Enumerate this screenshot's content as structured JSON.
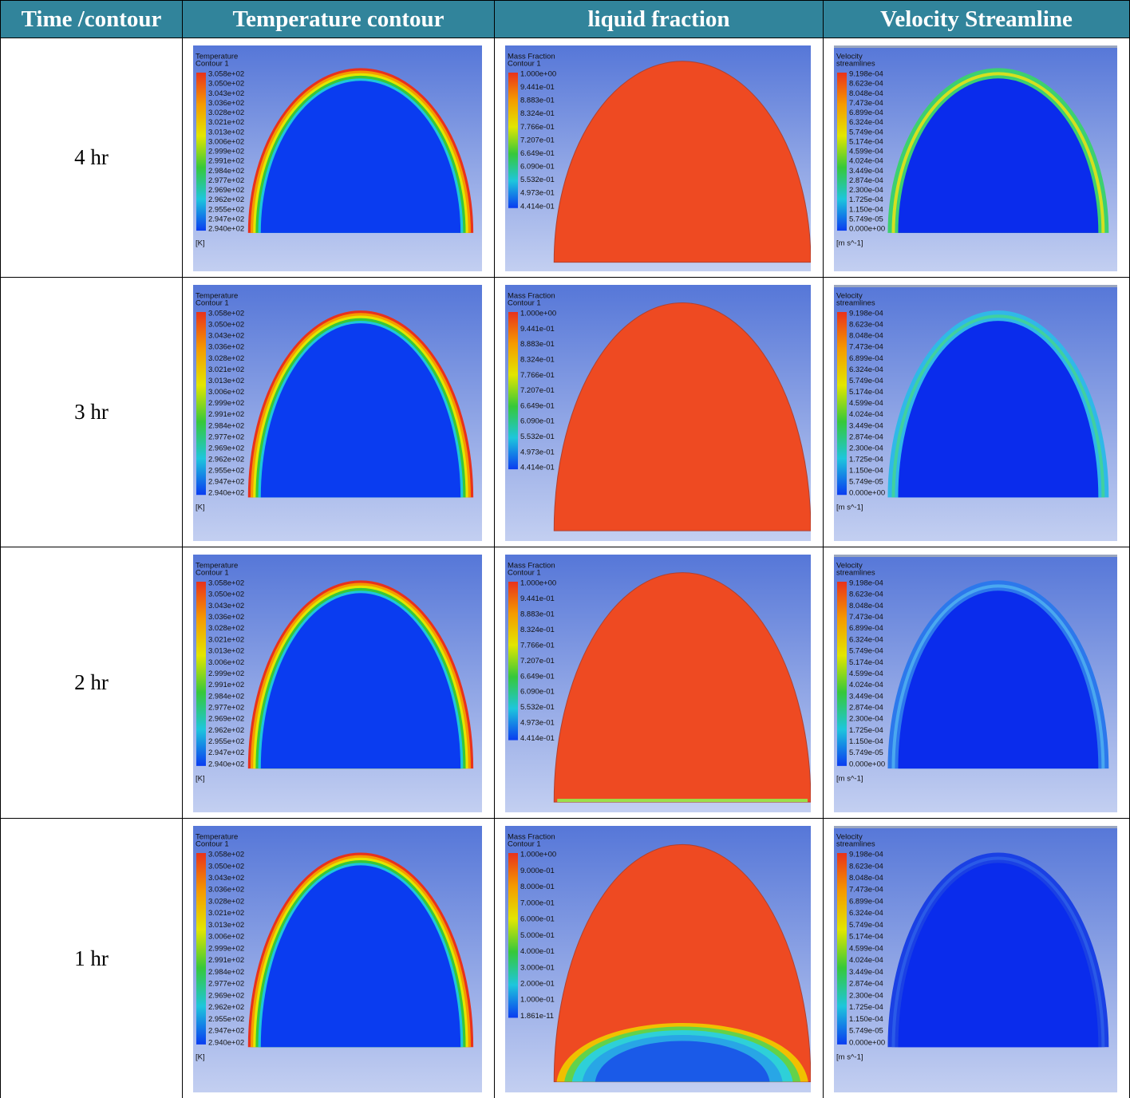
{
  "header": [
    "Time /contour",
    "Temperature contour",
    "liquid fraction",
    "Velocity Streamline"
  ],
  "rows": [
    {
      "time": "4 hr",
      "temperature": {
        "title": "Temperature",
        "subtitle": "Contour 1",
        "labels": [
          "3.058e+02",
          "3.050e+02",
          "3.043e+02",
          "3.036e+02",
          "3.028e+02",
          "3.021e+02",
          "3.013e+02",
          "3.006e+02",
          "2.999e+02",
          "2.991e+02",
          "2.984e+02",
          "2.977e+02",
          "2.969e+02",
          "2.962e+02",
          "2.955e+02",
          "2.947e+02",
          "2.940e+02"
        ],
        "unit": "[K]"
      },
      "liquid": {
        "title": "Mass Fraction",
        "subtitle": "Contour 1",
        "labels": [
          "1.000e+00",
          "9.441e-01",
          "8.883e-01",
          "8.324e-01",
          "7.766e-01",
          "7.207e-01",
          "6.649e-01",
          "6.090e-01",
          "5.532e-01",
          "4.973e-01",
          "4.414e-01"
        ]
      },
      "velocity": {
        "title": "Velocity",
        "subtitle": "streamlines",
        "labels": [
          "9.198e-04",
          "8.623e-04",
          "8.048e-04",
          "7.473e-04",
          "6.899e-04",
          "6.324e-04",
          "5.749e-04",
          "5.174e-04",
          "4.599e-04",
          "4.024e-04",
          "3.449e-04",
          "2.874e-04",
          "2.300e-04",
          "1.725e-04",
          "1.150e-04",
          "5.749e-05",
          "0.000e+00"
        ],
        "unit": "[m s^-1]"
      }
    },
    {
      "time": "3 hr",
      "temperature": {
        "title": "Temperature",
        "subtitle": "Contour 1",
        "labels": [
          "3.058e+02",
          "3.050e+02",
          "3.043e+02",
          "3.036e+02",
          "3.028e+02",
          "3.021e+02",
          "3.013e+02",
          "3.006e+02",
          "2.999e+02",
          "2.991e+02",
          "2.984e+02",
          "2.977e+02",
          "2.969e+02",
          "2.962e+02",
          "2.955e+02",
          "2.947e+02",
          "2.940e+02"
        ],
        "unit": "[K]"
      },
      "liquid": {
        "title": "Mass Fraction",
        "subtitle": "Contour 1",
        "labels": [
          "1.000e+00",
          "9.441e-01",
          "8.883e-01",
          "8.324e-01",
          "7.766e-01",
          "7.207e-01",
          "6.649e-01",
          "6.090e-01",
          "5.532e-01",
          "4.973e-01",
          "4.414e-01"
        ]
      },
      "velocity": {
        "title": "Velocity",
        "subtitle": "streamlines",
        "labels": [
          "9.198e-04",
          "8.623e-04",
          "8.048e-04",
          "7.473e-04",
          "6.899e-04",
          "6.324e-04",
          "5.749e-04",
          "5.174e-04",
          "4.599e-04",
          "4.024e-04",
          "3.449e-04",
          "2.874e-04",
          "2.300e-04",
          "1.725e-04",
          "1.150e-04",
          "5.749e-05",
          "0.000e+00"
        ],
        "unit": "[m s^-1]"
      }
    },
    {
      "time": "2 hr",
      "temperature": {
        "title": "Temperature",
        "subtitle": "Contour 1",
        "labels": [
          "3.058e+02",
          "3.050e+02",
          "3.043e+02",
          "3.036e+02",
          "3.028e+02",
          "3.021e+02",
          "3.013e+02",
          "3.006e+02",
          "2.999e+02",
          "2.991e+02",
          "2.984e+02",
          "2.977e+02",
          "2.969e+02",
          "2.962e+02",
          "2.955e+02",
          "2.947e+02",
          "2.940e+02"
        ],
        "unit": "[K]"
      },
      "liquid": {
        "title": "Mass Fraction",
        "subtitle": "Contour 1",
        "labels": [
          "1.000e+00",
          "9.441e-01",
          "8.883e-01",
          "8.324e-01",
          "7.766e-01",
          "7.207e-01",
          "6.649e-01",
          "6.090e-01",
          "5.532e-01",
          "4.973e-01",
          "4.414e-01"
        ]
      },
      "velocity": {
        "title": "Velocity",
        "subtitle": "streamlines",
        "labels": [
          "9.198e-04",
          "8.623e-04",
          "8.048e-04",
          "7.473e-04",
          "6.899e-04",
          "6.324e-04",
          "5.749e-04",
          "5.174e-04",
          "4.599e-04",
          "4.024e-04",
          "3.449e-04",
          "2.874e-04",
          "2.300e-04",
          "1.725e-04",
          "1.150e-04",
          "5.749e-05",
          "0.000e+00"
        ],
        "unit": "[m s^-1]"
      }
    },
    {
      "time": "1 hr",
      "temperature": {
        "title": "Temperature",
        "subtitle": "Contour 1",
        "labels": [
          "3.058e+02",
          "3.050e+02",
          "3.043e+02",
          "3.036e+02",
          "3.028e+02",
          "3.021e+02",
          "3.013e+02",
          "3.006e+02",
          "2.999e+02",
          "2.991e+02",
          "2.984e+02",
          "2.977e+02",
          "2.969e+02",
          "2.962e+02",
          "2.955e+02",
          "2.947e+02",
          "2.940e+02"
        ],
        "unit": "[K]"
      },
      "liquid": {
        "title": "Mass Fraction",
        "subtitle": "Contour 1",
        "labels": [
          "1.000e+00",
          "9.000e-01",
          "8.000e-01",
          "7.000e-01",
          "6.000e-01",
          "5.000e-01",
          "4.000e-01",
          "3.000e-01",
          "2.000e-01",
          "1.000e-01",
          "1.861e-11"
        ]
      },
      "velocity": {
        "title": "Velocity",
        "subtitle": "streamlines",
        "labels": [
          "9.198e-04",
          "8.623e-04",
          "8.048e-04",
          "7.473e-04",
          "6.899e-04",
          "6.324e-04",
          "5.749e-04",
          "5.174e-04",
          "4.599e-04",
          "4.024e-04",
          "3.449e-04",
          "2.874e-04",
          "2.300e-04",
          "1.725e-04",
          "1.150e-04",
          "5.749e-05",
          "0.000e+00"
        ],
        "unit": "[m s^-1]"
      }
    }
  ]
}
